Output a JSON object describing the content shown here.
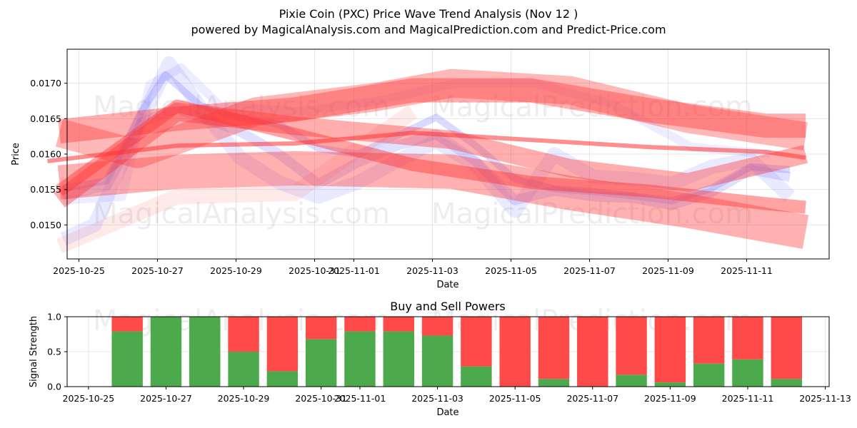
{
  "title_line1": "Pixie Coin (PXC) Price Wave Trend Analysis (Nov 12 )",
  "title_line2": "powered by MagicalAnalysis.com and MagicalPrediction.com and Predict-Price.com",
  "watermarks": [
    "MagicalAnalysis.com",
    "MagicalPrediction.com"
  ],
  "colors": {
    "bull": "#4caa4c",
    "bear": "#ff4a4a",
    "wave_red": "#ff3333",
    "wave_blue": "#6a6aff"
  },
  "chart_data": [
    {
      "type": "line",
      "name": "price-wave",
      "xlabel": "Date",
      "ylabel": "Price",
      "xlim": [
        "2025-10-24.3",
        "2025-11-13.1"
      ],
      "ylim": [
        0.01452,
        0.01748
      ],
      "x_tick_labels": [
        "2025-10-25",
        "2025-10-27",
        "2025-10-29",
        "2025-10-31",
        "2025-11-01",
        "2025-11-03",
        "2025-11-05",
        "2025-11-07",
        "2025-11-09",
        "2025-11-11"
      ],
      "x_tick_days": [
        0,
        2,
        4,
        6,
        7,
        9,
        11,
        13,
        15,
        17
      ],
      "y_tick_labels": [
        "0.0150",
        "0.0155",
        "0.0160",
        "0.0165",
        "0.0170"
      ],
      "y_ticks": [
        0.015,
        0.0155,
        0.016,
        0.0165,
        0.017
      ],
      "grid": true,
      "series": [
        {
          "name": "blue-wave-1",
          "color": "blue",
          "width": 10,
          "opacity": 0.25,
          "x": [
            -0.4,
            0.7,
            1.6,
            2.2,
            3.1,
            4.1,
            5.1,
            6.1,
            7.1,
            9.1,
            10.1,
            11.1,
            12.1,
            13.1,
            14.1,
            15.1,
            16.1,
            17.1,
            18.1
          ],
          "y": [
            0.01552,
            0.01562,
            0.0166,
            0.01712,
            0.01668,
            0.01652,
            0.01642,
            0.01608,
            0.016,
            0.01652,
            0.01612,
            0.01565,
            0.01551,
            0.01547,
            0.01541,
            0.01534,
            0.01552,
            0.01582,
            0.01578
          ]
        },
        {
          "name": "blue-wave-2",
          "color": "blue",
          "width": 14,
          "opacity": 0.2,
          "x": [
            -0.4,
            0.7,
            1.6,
            2.5,
            3.1,
            4.1,
            5.1,
            6.1,
            7.1,
            8.1,
            9.1,
            10.1,
            11.1,
            12.1,
            13.1,
            14.1,
            15.1,
            16.1,
            17.1,
            18.1
          ],
          "y": [
            0.01542,
            0.01555,
            0.01645,
            0.01665,
            0.01652,
            0.01632,
            0.016,
            0.01558,
            0.01588,
            0.01612,
            0.01628,
            0.0159,
            0.01535,
            0.01548,
            0.0154,
            0.01538,
            0.01528,
            0.01546,
            0.01578,
            0.01568
          ]
        },
        {
          "name": "blue-wave-3",
          "color": "blue",
          "width": 20,
          "opacity": 0.15,
          "x": [
            -0.4,
            0.4,
            1.6,
            2.3,
            3.1,
            4.1,
            5.1,
            6.1,
            7.1,
            8.1,
            9.1,
            10.1,
            11.1,
            12.1,
            13.1,
            14.1,
            15.1,
            16.1,
            17.1,
            18.1
          ],
          "y": [
            0.0148,
            0.015,
            0.0165,
            0.01728,
            0.01665,
            0.01595,
            0.0156,
            0.0154,
            0.0156,
            0.0159,
            0.01618,
            0.01585,
            0.0152,
            0.016,
            0.01568,
            0.01565,
            0.01558,
            0.01582,
            0.01592,
            0.0154
          ]
        },
        {
          "name": "blue-wave-4",
          "color": "blue",
          "width": 12,
          "opacity": 0.12,
          "x": [
            -0.4,
            1.1,
            1.8,
            2.6,
            3.6,
            5.6,
            7.6,
            9.6,
            11.6,
            13.6,
            15.6,
            17.6
          ],
          "y": [
            0.01535,
            0.0154,
            0.01698,
            0.01722,
            0.01668,
            0.0166,
            0.01675,
            0.017,
            0.017,
            0.0167,
            0.0161,
            0.016
          ]
        },
        {
          "name": "red-band-1",
          "color": "red",
          "width": 34,
          "opacity": 0.4,
          "x": [
            -0.5,
            2.5,
            5.5,
            8.5,
            11.5,
            14.5,
            17.5,
            18.5
          ],
          "y": [
            0.01632,
            0.0165,
            0.01663,
            0.0169,
            0.0169,
            0.01662,
            0.0164,
            0.0164
          ]
        },
        {
          "name": "red-band-2",
          "color": "red",
          "width": 40,
          "opacity": 0.35,
          "x": [
            -0.5,
            1.5,
            4.5,
            7.5,
            9.5,
            12.5,
            15.5,
            18.5
          ],
          "y": [
            0.0163,
            0.016,
            0.0166,
            0.0168,
            0.017,
            0.0169,
            0.0165,
            0.01625
          ]
        },
        {
          "name": "red-band-3",
          "color": "red",
          "width": 48,
          "opacity": 0.38,
          "x": [
            -0.5,
            2.5,
            5.5,
            9.5,
            12.5,
            15.5,
            18.5
          ],
          "y": [
            0.0156,
            0.01575,
            0.0158,
            0.01575,
            0.01545,
            0.0152,
            0.0149
          ]
        },
        {
          "name": "red-band-4",
          "color": "red",
          "width": 26,
          "opacity": 0.4,
          "x": [
            -0.5,
            2.5,
            5.5,
            9.5,
            12.5,
            15.5,
            18.5
          ],
          "y": [
            0.01535,
            0.0166,
            0.0164,
            0.0162,
            0.0158,
            0.0156,
            0.016
          ]
        },
        {
          "name": "red-band-5",
          "color": "red",
          "width": 18,
          "opacity": 0.45,
          "x": [
            -0.5,
            2.5,
            5.5,
            8.5,
            11.5,
            14.5,
            17.5,
            18.5
          ],
          "y": [
            0.01548,
            0.01668,
            0.01628,
            0.01585,
            0.0156,
            0.01548,
            0.0153,
            0.01525
          ]
        },
        {
          "name": "red-band-6",
          "color": "red",
          "width": 22,
          "opacity": 0.1,
          "x": [
            -0.5,
            2.5,
            5.5,
            8.5
          ],
          "y": [
            0.0147,
            0.0154,
            0.01545,
            0.0166
          ]
        },
        {
          "name": "red-trend-center",
          "color": "red",
          "width": 6,
          "opacity": 0.55,
          "x": [
            -0.8,
            2.5,
            5.5,
            8.5,
            11.5,
            14.5,
            17.5,
            18.5
          ],
          "y": [
            0.0159,
            0.01612,
            0.01615,
            0.0163,
            0.0162,
            0.0161,
            0.01603,
            0.01595
          ]
        }
      ]
    },
    {
      "type": "bar",
      "name": "buy-sell-powers",
      "title": "Buy and Sell Powers",
      "xlabel": "Date",
      "ylabel": "Signal Strength",
      "ylim": [
        0,
        1
      ],
      "y_tick_labels": [
        "0.0",
        "0.5",
        "1.0"
      ],
      "y_ticks": [
        0,
        0.5,
        1.0
      ],
      "x_tick_labels": [
        "2025-10-25",
        "2025-10-27",
        "2025-10-29",
        "2025-10-31",
        "2025-11-01",
        "2025-11-03",
        "2025-11-05",
        "2025-11-07",
        "2025-11-09",
        "2025-11-11",
        "2025-11-13"
      ],
      "x_tick_days": [
        0,
        2,
        4,
        6,
        7,
        9,
        11,
        13,
        15,
        17,
        19
      ],
      "grid": true,
      "bar_days": [
        1,
        2,
        3,
        4,
        5,
        6,
        7,
        8,
        9,
        10,
        11,
        12,
        13,
        14,
        15,
        16,
        17,
        18
      ],
      "buy": [
        0.79,
        1.0,
        1.0,
        0.5,
        0.22,
        0.68,
        0.79,
        0.79,
        0.73,
        0.29,
        0.0,
        0.11,
        0.0,
        0.17,
        0.06,
        0.33,
        0.39,
        0.11
      ],
      "sell": [
        0.21,
        0.0,
        0.0,
        0.5,
        0.78,
        0.32,
        0.21,
        0.21,
        0.27,
        0.71,
        1.0,
        0.89,
        1.0,
        0.83,
        0.94,
        0.67,
        0.61,
        0.89
      ]
    }
  ]
}
